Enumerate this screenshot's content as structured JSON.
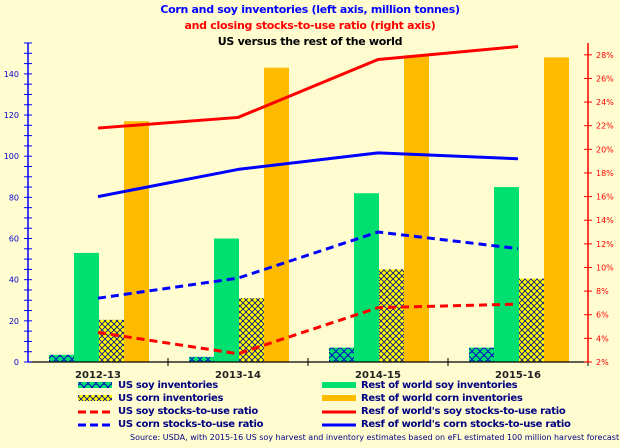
{
  "chart_data": {
    "type": "bar",
    "title": "Corn and soy inventories (left axis, million tonnes)",
    "subtitle": "and closing stocks-to-use ratio (right axis)",
    "subtitle2": "US versus the rest of the world",
    "categories": [
      "2012-13",
      "2013-14",
      "2014-15",
      "2015-16"
    ],
    "left_axis": {
      "label": "million tonnes",
      "range": [
        0,
        155
      ],
      "ticks": [
        0,
        20,
        40,
        60,
        80,
        100,
        120,
        140
      ]
    },
    "right_axis": {
      "label": "stocks-to-use ratio",
      "range": [
        2,
        29
      ],
      "ticks": [
        "2%",
        "4%",
        "6%",
        "8%",
        "10%",
        "12%",
        "14%",
        "16%",
        "18%",
        "20%",
        "22%",
        "24%",
        "26%",
        "28%"
      ]
    },
    "bar_series": [
      {
        "name": "US soy inventories",
        "color": "#00e070",
        "pattern": "scales",
        "values": [
          3.5,
          2.5,
          7,
          7
        ]
      },
      {
        "name": "Rest of world soy inventories",
        "color": "#00e070",
        "values": [
          53,
          60,
          82,
          85
        ]
      },
      {
        "name": "US corn inventories",
        "color": "#ffff00",
        "pattern": "crosshatch",
        "values": [
          20.5,
          31,
          45,
          40.5
        ]
      },
      {
        "name": "Rest of world corn inventories",
        "color": "#ffbb00",
        "values": [
          117,
          143,
          149,
          148
        ]
      }
    ],
    "line_series": [
      {
        "name": "US soy stocks-to-use ratio",
        "color": "#ff0000",
        "dashed": true,
        "values": [
          4.5,
          2.7,
          6.6,
          6.9
        ]
      },
      {
        "name": "US corn stocks-to-use ratio",
        "color": "#0000ff",
        "dashed": true,
        "values": [
          7.4,
          9.1,
          13.0,
          11.6
        ]
      },
      {
        "name": "Resf of world's soy stocks-to-use ratio",
        "color": "#ff0000",
        "dashed": false,
        "values": [
          21.8,
          22.7,
          27.6,
          28.7
        ]
      },
      {
        "name": "Resf of world's corn stocks-to-use ratio",
        "color": "#0000ff",
        "dashed": false,
        "values": [
          16.0,
          18.3,
          19.7,
          19.2
        ]
      }
    ],
    "legend_position": "bottom",
    "grid": false
  },
  "titles": {
    "line1": "Corn and soy inventories (left axis, million tonnes)",
    "line2": "and closing stocks-to-use ratio (right axis)",
    "line3": "US versus the rest of the world"
  },
  "legend": {
    "left": [
      "US soy inventories",
      "US corn inventories",
      "US soy stocks-to-use ratio",
      "US corn stocks-to-use ratio"
    ],
    "right": [
      "Rest of world soy inventories",
      "Rest of world corn inventories",
      "Resf of world's soy stocks-to-use ratio",
      "Resf of world's corn stocks-to-use ratio"
    ]
  },
  "source": "Source: USDA, with  2015-16 US soy harvest and inventory estimates based on eFL estimated 100 million harvest forecast"
}
